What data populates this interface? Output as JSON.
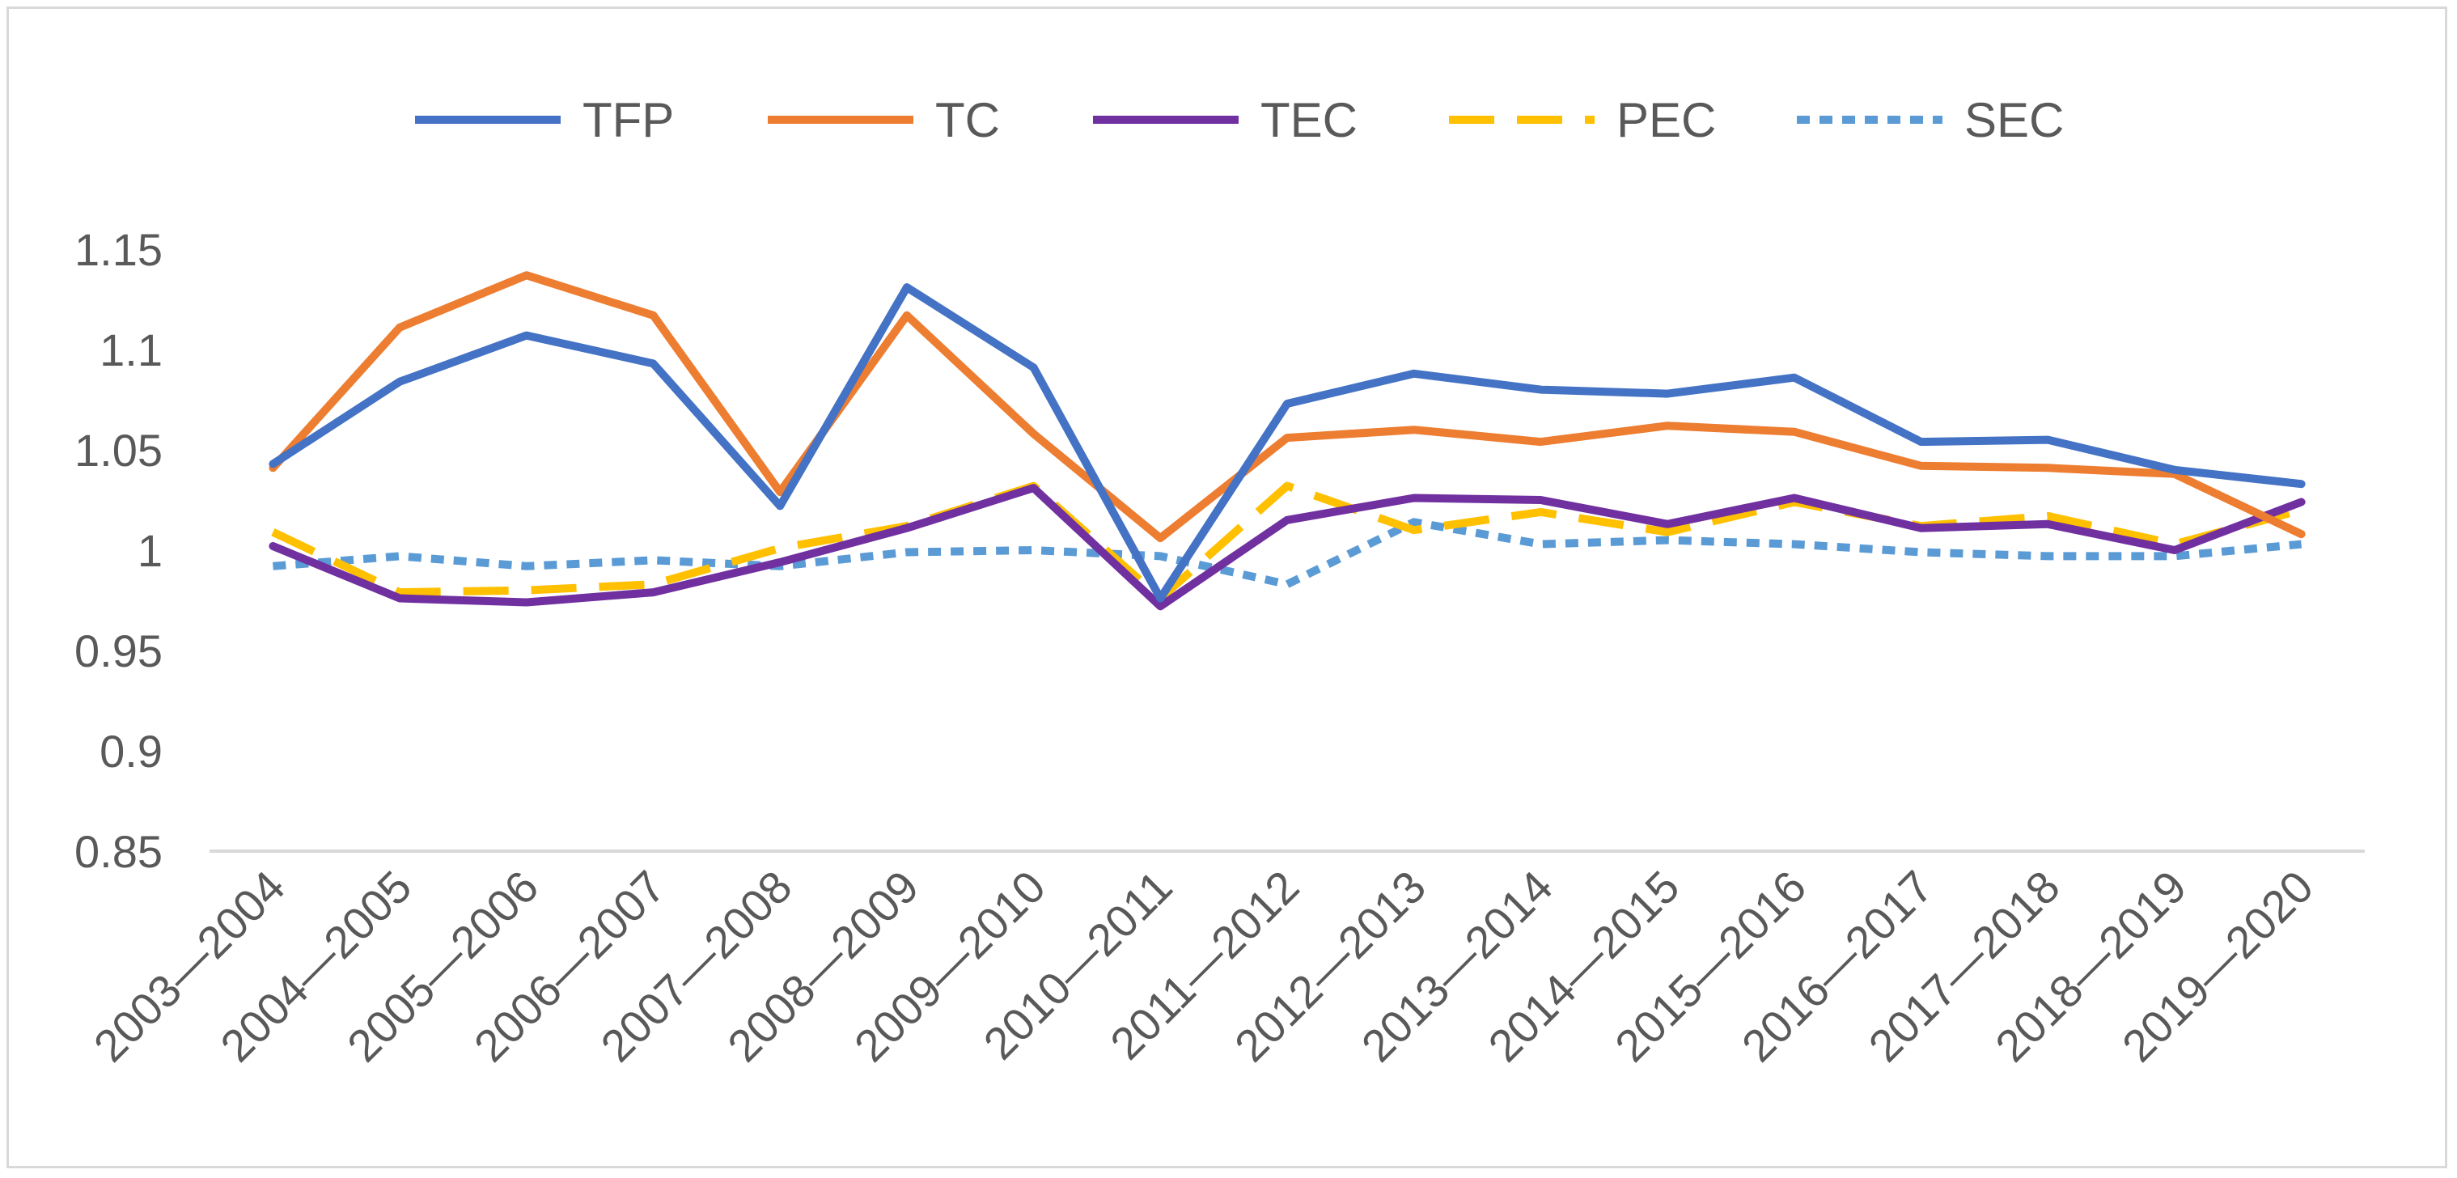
{
  "chart_data": {
    "type": "line",
    "title": "",
    "xlabel": "",
    "ylabel": "",
    "ylim": [
      0.85,
      1.15
    ],
    "yticks": [
      0.85,
      0.9,
      0.95,
      1,
      1.05,
      1.1,
      1.15
    ],
    "ytick_labels": [
      "0.85",
      "0.9",
      "0.95",
      "1",
      "1.05",
      "1.1",
      "1.15"
    ],
    "grid": false,
    "legend_position": "top",
    "categories": [
      "2003—2004",
      "2004—2005",
      "2005—2006",
      "2006—2007",
      "2007—2008",
      "2008—2009",
      "2009—2010",
      "2010—2011",
      "2011—2012",
      "2012—2013",
      "2013—2014",
      "2014—2015",
      "2015—2016",
      "2016—2017",
      "2017—2018",
      "2018—2019",
      "2019—2020"
    ],
    "series": [
      {
        "name": "TFP",
        "color": "#4472C4",
        "dash": "solid",
        "values": [
          1.043,
          1.084,
          1.107,
          1.093,
          1.022,
          1.131,
          1.091,
          0.976,
          1.073,
          1.088,
          1.08,
          1.078,
          1.086,
          1.054,
          1.055,
          1.04,
          1.033
        ]
      },
      {
        "name": "TC",
        "color": "#ED7D31",
        "dash": "solid",
        "values": [
          1.041,
          1.111,
          1.137,
          1.117,
          1.029,
          1.117,
          1.058,
          1.006,
          1.056,
          1.06,
          1.054,
          1.062,
          1.059,
          1.042,
          1.041,
          1.038,
          1.008
        ]
      },
      {
        "name": "TEC",
        "color": "#7030A0",
        "dash": "solid",
        "values": [
          1.002,
          0.976,
          0.974,
          0.979,
          0.994,
          1.011,
          1.031,
          0.972,
          1.015,
          1.026,
          1.025,
          1.013,
          1.026,
          1.011,
          1.013,
          1.0,
          1.024
        ]
      },
      {
        "name": "PEC",
        "color": "#FFC000",
        "dash": "long-dash",
        "values": [
          1.009,
          0.979,
          0.98,
          0.983,
          1.001,
          1.012,
          1.032,
          0.976,
          1.032,
          1.01,
          1.019,
          1.009,
          1.024,
          1.012,
          1.017,
          1.003,
          1.02
        ]
      },
      {
        "name": "SEC",
        "color": "#5B9BD5",
        "dash": "short-dash",
        "values": [
          0.992,
          0.997,
          0.992,
          0.995,
          0.992,
          0.999,
          1.0,
          0.997,
          0.983,
          1.014,
          1.003,
          1.005,
          1.003,
          0.999,
          0.997,
          0.997,
          1.003
        ]
      }
    ]
  }
}
